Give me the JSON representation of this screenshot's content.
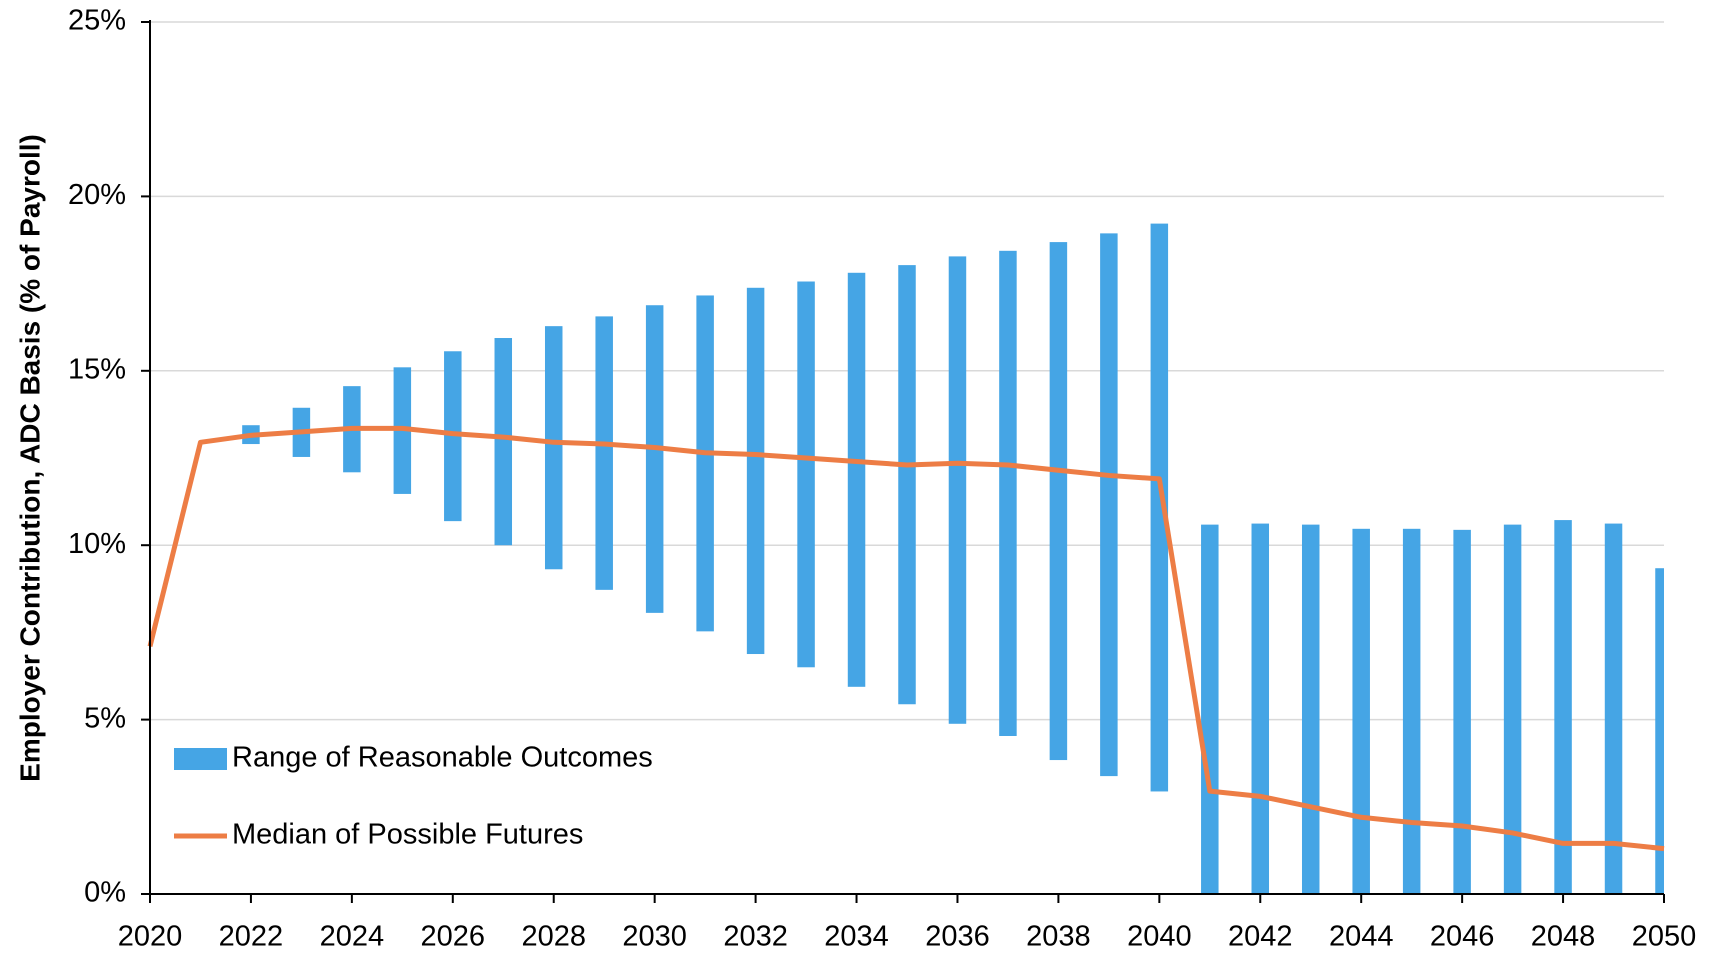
{
  "chart_data": {
    "type": "range_bar_line",
    "y_label": "Employer Contribution, ADC Basis (% of Payroll)",
    "x": [
      2020,
      2021,
      2022,
      2023,
      2024,
      2025,
      2026,
      2027,
      2028,
      2029,
      2030,
      2031,
      2032,
      2033,
      2034,
      2035,
      2036,
      2037,
      2038,
      2039,
      2040,
      2041,
      2042,
      2043,
      2044,
      2045,
      2046,
      2047,
      2048,
      2049,
      2050
    ],
    "series": [
      {
        "name": "Range of Reasonable Outcomes",
        "color": "#45a5e5",
        "low": [
          null,
          null,
          12.9,
          12.53,
          12.09,
          11.47,
          10.69,
          10.0,
          9.31,
          8.72,
          8.06,
          7.53,
          6.88,
          6.5,
          5.94,
          5.44,
          4.88,
          4.53,
          3.84,
          3.38,
          2.94,
          0,
          0,
          0,
          0,
          0,
          0,
          0,
          0,
          0,
          0
        ],
        "high": [
          null,
          null,
          13.44,
          13.94,
          14.56,
          15.1,
          15.56,
          15.94,
          16.28,
          16.56,
          16.88,
          17.16,
          17.38,
          17.56,
          17.81,
          18.03,
          18.28,
          18.44,
          18.69,
          18.94,
          19.22,
          10.59,
          10.62,
          10.59,
          10.47,
          10.47,
          10.44,
          10.59,
          10.72,
          10.62,
          9.34
        ]
      },
      {
        "name": "Median of Possible Futures",
        "color": "#ed7d45",
        "values": [
          7.1,
          12.95,
          13.15,
          13.25,
          13.35,
          13.35,
          13.2,
          13.1,
          12.95,
          12.9,
          12.8,
          12.65,
          12.6,
          12.5,
          12.4,
          12.3,
          12.35,
          12.3,
          12.15,
          12.0,
          11.9,
          2.95,
          2.8,
          2.5,
          2.2,
          2.05,
          1.95,
          1.75,
          1.45,
          1.45,
          1.3
        ]
      }
    ],
    "xlim": [
      2020,
      2050
    ],
    "xticks": [
      2020,
      2022,
      2024,
      2026,
      2028,
      2030,
      2032,
      2034,
      2036,
      2038,
      2040,
      2042,
      2044,
      2046,
      2048,
      2050
    ],
    "ylim": [
      0,
      25
    ],
    "yticks": [
      {
        "value": 0,
        "label": "0%"
      },
      {
        "value": 5,
        "label": "5%"
      },
      {
        "value": 10,
        "label": "10%"
      },
      {
        "value": 15,
        "label": "15%"
      },
      {
        "value": 20,
        "label": "20%"
      },
      {
        "value": 25,
        "label": "25%"
      }
    ],
    "grid": true,
    "legend": "lower left"
  }
}
